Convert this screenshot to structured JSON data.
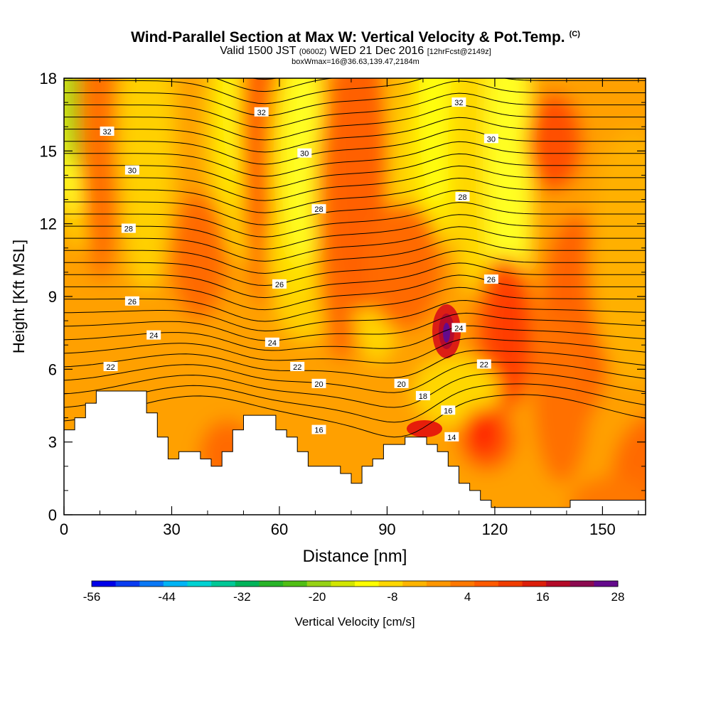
{
  "chart_data": {
    "type": "heatmap",
    "title": "Wind-Parallel Section at Max W: Vertical Velocity & Pot.Temp.",
    "title_credit": "(C)",
    "subtitle": {
      "valid_prefix": "Valid 1500 JST",
      "valid_utc": "(0600Z)",
      "valid_date": "WED 21 Dec 2016",
      "forecast": "[12hrFcst@2149z]"
    },
    "subtitle2": "boxWmax=16@36.63,139.47,2184m",
    "xlabel": "Distance [nm]",
    "ylabel": "Height [Kft MSL]",
    "xlim": [
      0,
      162
    ],
    "ylim": [
      0,
      18
    ],
    "xticks": [
      0,
      30,
      60,
      90,
      120,
      150
    ],
    "yticks": [
      0,
      3,
      6,
      9,
      12,
      15,
      18
    ],
    "colorbar": {
      "label": "Vertical Velocity [cm/s]",
      "ticks": [
        "-56",
        "-44",
        "-32",
        "-20",
        "-8",
        "4",
        "16",
        "28"
      ],
      "levels": [
        -56,
        -52,
        -48,
        -44,
        -40,
        -36,
        -32,
        -28,
        -24,
        -20,
        -16,
        -12,
        -8,
        -4,
        0,
        4,
        8,
        12,
        16,
        20,
        24,
        28
      ],
      "colors": [
        "#0000e8",
        "#0a3cf0",
        "#0a78f5",
        "#00b4f5",
        "#00d2d2",
        "#00c896",
        "#00b45a",
        "#28b428",
        "#50be14",
        "#96d214",
        "#d2e600",
        "#ffff00",
        "#ffd700",
        "#ffb400",
        "#ff9600",
        "#ff7800",
        "#ff5a00",
        "#f03c00",
        "#dc1e0a",
        "#b40a28",
        "#8c0a50",
        "#640a8c"
      ]
    },
    "contour_variable": "Pot.Temp. (C)",
    "contour_labels": [
      {
        "value": "32",
        "x": 12,
        "y": 15.8
      },
      {
        "value": "32",
        "x": 55,
        "y": 16.6
      },
      {
        "value": "32",
        "x": 110,
        "y": 17.0
      },
      {
        "value": "30",
        "x": 19,
        "y": 14.2
      },
      {
        "value": "30",
        "x": 67,
        "y": 14.9
      },
      {
        "value": "30",
        "x": 119,
        "y": 15.5
      },
      {
        "value": "28",
        "x": 18,
        "y": 11.8
      },
      {
        "value": "28",
        "x": 71,
        "y": 12.6
      },
      {
        "value": "28",
        "x": 111,
        "y": 13.1
      },
      {
        "value": "26",
        "x": 19,
        "y": 8.8
      },
      {
        "value": "26",
        "x": 60,
        "y": 9.5
      },
      {
        "value": "26",
        "x": 119,
        "y": 9.7
      },
      {
        "value": "24",
        "x": 25,
        "y": 7.4
      },
      {
        "value": "24",
        "x": 58,
        "y": 7.1
      },
      {
        "value": "24",
        "x": 110,
        "y": 7.7
      },
      {
        "value": "22",
        "x": 13,
        "y": 6.1
      },
      {
        "value": "22",
        "x": 65,
        "y": 6.1
      },
      {
        "value": "22",
        "x": 117,
        "y": 6.2
      },
      {
        "value": "20",
        "x": 71,
        "y": 5.4
      },
      {
        "value": "20",
        "x": 94,
        "y": 5.4
      },
      {
        "value": "18",
        "x": 100,
        "y": 4.9
      },
      {
        "value": "16",
        "x": 71,
        "y": 3.5
      },
      {
        "value": "16",
        "x": 107,
        "y": 4.3
      },
      {
        "value": "14",
        "x": 108,
        "y": 3.2
      }
    ]
  }
}
